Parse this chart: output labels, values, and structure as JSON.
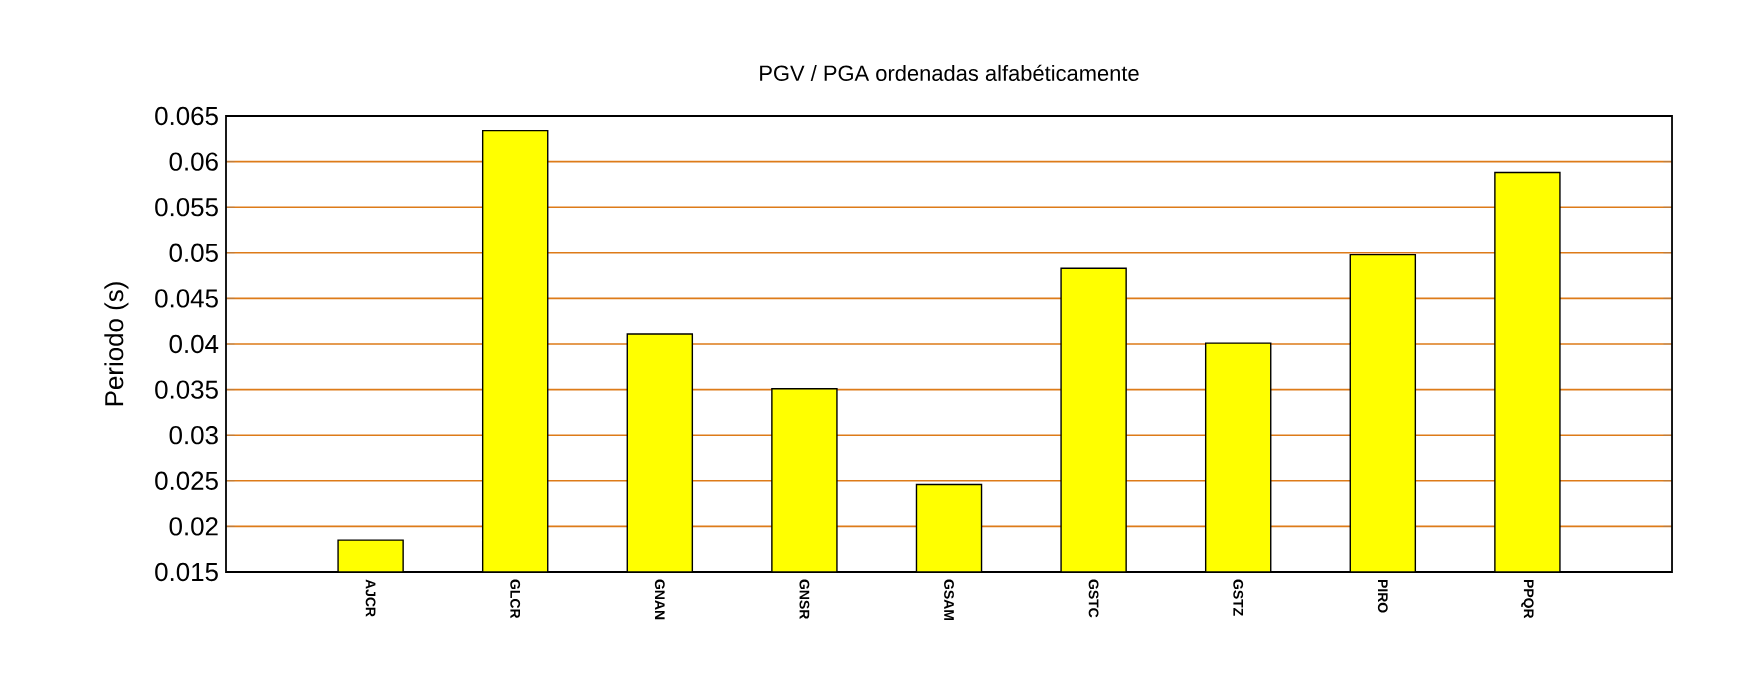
{
  "chart_data": {
    "type": "bar",
    "title": "PGV / PGA ordenadas alfabéticamente",
    "ylabel": "Periodo (s)",
    "categories": [
      "AJCR",
      "GLCR",
      "GNAN",
      "GNSR",
      "GSAM",
      "GSTC",
      "GSTZ",
      "PIRO",
      "PPQR"
    ],
    "values": [
      0.0185,
      0.0634,
      0.0411,
      0.0351,
      0.0246,
      0.0483,
      0.0401,
      0.0498,
      0.0588
    ],
    "color": "#ffff00",
    "ylim": [
      0.015,
      0.065
    ],
    "yticks": [
      0.015,
      0.02,
      0.025,
      0.03,
      0.035,
      0.04,
      0.045,
      0.05,
      0.055,
      0.06,
      0.065
    ],
    "grid": "y"
  }
}
